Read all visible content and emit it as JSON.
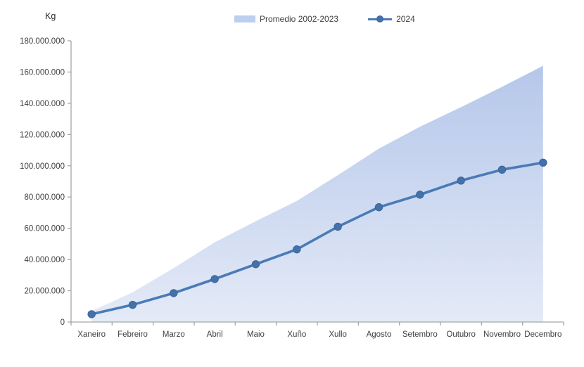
{
  "unit_label": "Kg",
  "legend": {
    "area_label": "Promedio 2002-2023",
    "line_label": "2024"
  },
  "colors": {
    "line": "#4a7bb7",
    "marker_fill": "#4472a8",
    "marker_stroke": "#3a649c",
    "area_top": "#b5c7ea",
    "area_bottom": "#e4eaf7",
    "legend_area_swatch": "#bccfee",
    "axis": "#a6a6a6",
    "tick_text": "#404040"
  },
  "chart_data": {
    "type": "combo-area-line",
    "title": "",
    "ylabel": "Kg",
    "xlabel": "",
    "grid": false,
    "legend_position": "top",
    "ylim": [
      0,
      180000000
    ],
    "y_step": 20000000,
    "y_tick_labels": [
      "0",
      "20.000.000",
      "40.000.000",
      "60.000.000",
      "80.000.000",
      "100.000.000",
      "120.000.000",
      "140.000.000",
      "160.000.000",
      "180.000.000"
    ],
    "categories": [
      "Xaneiro",
      "Febreiro",
      "Marzo",
      "Abril",
      "Maio",
      "Xuño",
      "Xullo",
      "Agosto",
      "Setembro",
      "Outubro",
      "Novembro",
      "Decembro"
    ],
    "series": [
      {
        "name": "Promedio 2002-2023",
        "type": "area",
        "values": [
          7000000,
          19000000,
          34500000,
          51000000,
          64500000,
          77500000,
          94000000,
          111000000,
          125000000,
          137500000,
          150500000,
          164000000
        ]
      },
      {
        "name": "2024",
        "type": "line",
        "values": [
          5000000,
          11000000,
          18500000,
          27500000,
          37000000,
          46500000,
          61000000,
          73500000,
          81500000,
          90500000,
          97500000,
          102000000
        ]
      }
    ]
  }
}
